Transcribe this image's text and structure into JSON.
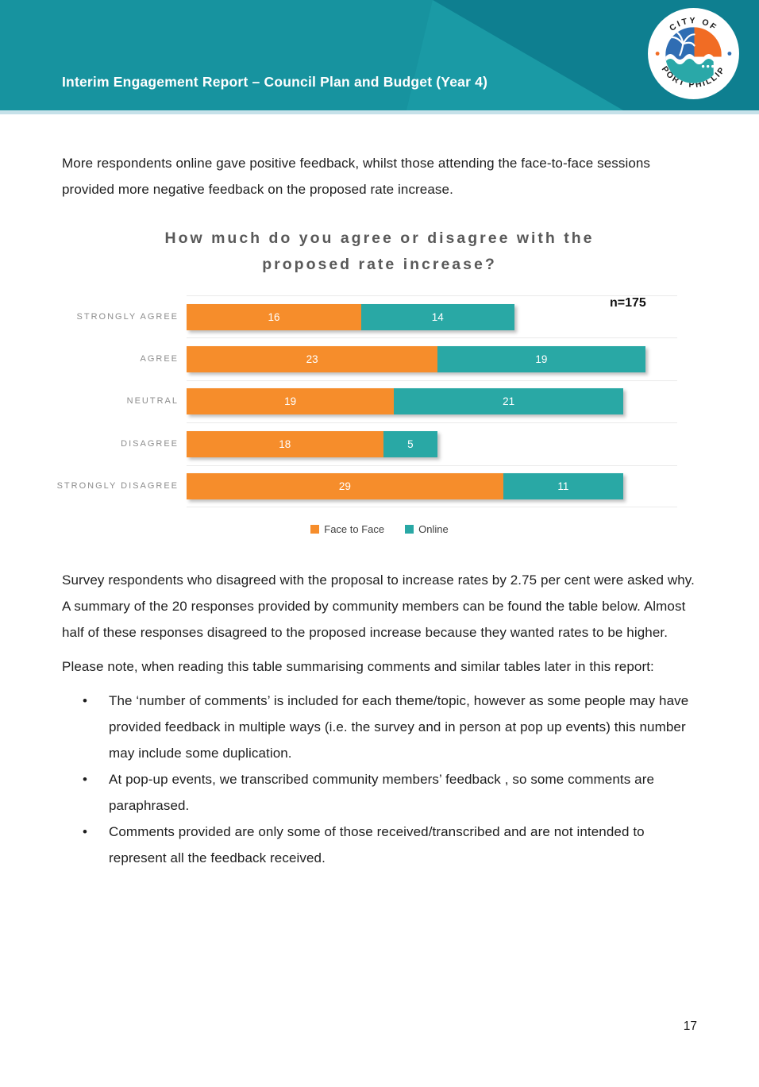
{
  "header": {
    "title": "Interim Engagement Report – Council Plan and Budget (Year 4)",
    "logo": {
      "top_text": "CITY OF",
      "bottom_text": "PORT PHILLIP"
    },
    "colors": {
      "banner_base": "#17939f",
      "banner_dark": "#0e7f90",
      "banner_mid": "#1a9aa5",
      "banner_underline": "#c6e1e9"
    }
  },
  "intro_paragraph": "More respondents online gave positive feedback, whilst those attending the face-to-face sessions provided more negative feedback on the proposed rate increase.",
  "chart_data": {
    "type": "bar",
    "orientation": "horizontal",
    "stacked": true,
    "title": "How much do you agree or disagree with the proposed rate increase?",
    "title_lines": [
      "How much do you agree or disagree with the",
      "proposed rate increase?"
    ],
    "annotation": "n=175",
    "categories": [
      "STRONGLY AGREE",
      "AGREE",
      "NEUTRAL",
      "DISAGREE",
      "STRONGLY DISAGREE"
    ],
    "series": [
      {
        "name": "Face to Face",
        "color": "#f68d2b",
        "values": [
          16,
          23,
          19,
          18,
          29
        ]
      },
      {
        "name": "Online",
        "color": "#29a8a5",
        "values": [
          14,
          19,
          21,
          5,
          11
        ]
      }
    ],
    "xlim": [
      0,
      45
    ],
    "grid": "horizontal row separators, light gray",
    "legend_position": "bottom",
    "value_labels": "inside segments, white"
  },
  "survey_paragraph": "Survey respondents who disagreed with the proposal to increase rates by 2.75 per cent were asked why. A summary of the 20 responses provided by community members can be found the table below. Almost half of these responses disagreed to the proposed increase because they wanted rates to be higher.",
  "note_paragraph": "Please note, when reading this table summarising comments and similar tables later in this report:",
  "bullets": [
    "The ‘number of comments’ is included for each theme/topic, however as some people may have provided feedback in multiple ways (i.e. the survey and in person at pop up events) this number may include some duplication.",
    "At pop-up events, we transcribed community members’ feedback , so some comments are paraphrased.",
    "Comments provided are only some of those received/transcribed and are not intended to represent all the feedback received."
  ],
  "page_number": "17"
}
